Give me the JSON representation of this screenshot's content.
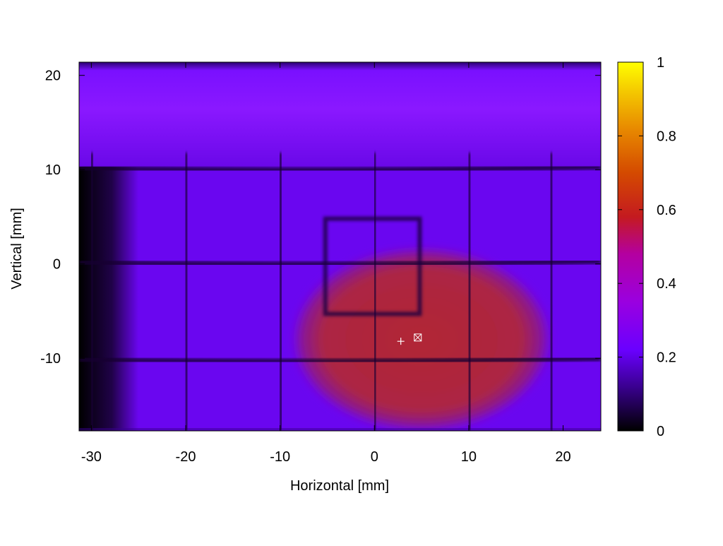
{
  "chart_data": {
    "type": "heatmap",
    "title": "",
    "xlabel": "Horizontal [mm]",
    "ylabel": "Vertical [mm]",
    "xlim": [
      -31.3,
      24.0
    ],
    "ylim": [
      -17.7,
      21.4
    ],
    "x_ticks": [
      {
        "value": -30,
        "label": "-30"
      },
      {
        "value": -20,
        "label": "-20"
      },
      {
        "value": -10,
        "label": "-10"
      },
      {
        "value": 0,
        "label": "0"
      },
      {
        "value": 10,
        "label": "10"
      },
      {
        "value": 20,
        "label": "20"
      }
    ],
    "y_ticks": [
      {
        "value": 20,
        "label": "20"
      },
      {
        "value": 10,
        "label": "10"
      },
      {
        "value": 0,
        "label": "0"
      },
      {
        "value": -10,
        "label": "-10"
      }
    ],
    "colorbar": {
      "range": [
        0,
        1
      ],
      "ticks": [
        {
          "value": 0,
          "label": "0"
        },
        {
          "value": 0.2,
          "label": "0.2"
        },
        {
          "value": 0.4,
          "label": "0.4"
        },
        {
          "value": 0.6,
          "label": "0.6"
        },
        {
          "value": 0.8,
          "label": "0.8"
        },
        {
          "value": 1,
          "label": "1"
        }
      ],
      "colors": [
        "#000000",
        "#5a00c8",
        "#7a00ff",
        "#b400b0",
        "#cc2a00",
        "#e07000",
        "#f0b800",
        "#ffff00"
      ]
    },
    "field": {
      "background_level": 0.18,
      "top_band": {
        "y_from": 10.3,
        "y_to": 21.4,
        "level": 0.2
      },
      "left_dark_edge_x": -25.0,
      "beam_spot": {
        "center": [
          5.0,
          -8.0
        ],
        "radius_x": 14,
        "radius_y": 10,
        "peak": 0.45
      },
      "grid_x": [
        -30,
        -20,
        -10,
        0,
        10,
        18.7
      ],
      "grid_y": [
        10.0,
        0.0,
        -10.3
      ],
      "inner_box": {
        "x": [
          -5.2,
          4.8
        ],
        "y": [
          -5.3,
          4.8
        ]
      }
    },
    "markers": [
      {
        "symbol": "+",
        "x": 2.8,
        "y": -8.2
      },
      {
        "symbol": "boxed-x",
        "x": 4.6,
        "y": -7.8
      }
    ],
    "grid": false,
    "legend": "none"
  }
}
